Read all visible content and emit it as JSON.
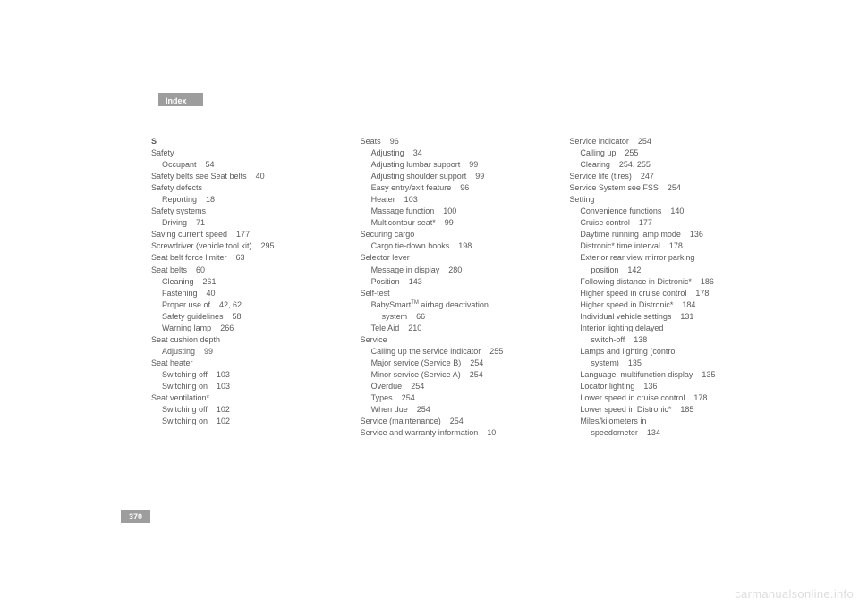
{
  "header": {
    "tab_label": "Index"
  },
  "page_number": "370",
  "watermark": "carmanualsonline.info",
  "columns": [
    [
      {
        "lvl": 0,
        "text": "S",
        "letter": true
      },
      {
        "lvl": 0,
        "text": "Safety"
      },
      {
        "lvl": 1,
        "text": "Occupant    54"
      },
      {
        "lvl": 0,
        "text": "Safety belts see Seat belts    40"
      },
      {
        "lvl": 0,
        "text": "Safety defects"
      },
      {
        "lvl": 1,
        "text": "Reporting    18"
      },
      {
        "lvl": 0,
        "text": "Safety systems"
      },
      {
        "lvl": 1,
        "text": "Driving    71"
      },
      {
        "lvl": 0,
        "text": "Saving current speed    177"
      },
      {
        "lvl": 0,
        "text": "Screwdriver (vehicle tool kit)    295"
      },
      {
        "lvl": 0,
        "text": "Seat belt force limiter    63"
      },
      {
        "lvl": 0,
        "text": "Seat belts    60"
      },
      {
        "lvl": 1,
        "text": "Cleaning    261"
      },
      {
        "lvl": 1,
        "text": "Fastening    40"
      },
      {
        "lvl": 1,
        "text": "Proper use of    42, 62"
      },
      {
        "lvl": 1,
        "text": "Safety guidelines    58"
      },
      {
        "lvl": 1,
        "text": "Warning lamp    266"
      },
      {
        "lvl": 0,
        "text": "Seat cushion depth"
      },
      {
        "lvl": 1,
        "text": "Adjusting    99"
      },
      {
        "lvl": 0,
        "text": "Seat heater"
      },
      {
        "lvl": 1,
        "text": "Switching off    103"
      },
      {
        "lvl": 1,
        "text": "Switching on    103"
      },
      {
        "lvl": 0,
        "text": "Seat ventilation*"
      },
      {
        "lvl": 1,
        "text": "Switching off    102"
      },
      {
        "lvl": 1,
        "text": "Switching on    102"
      }
    ],
    [
      {
        "lvl": 0,
        "text": "Seats    96"
      },
      {
        "lvl": 1,
        "text": "Adjusting    34"
      },
      {
        "lvl": 1,
        "text": "Adjusting lumbar support    99"
      },
      {
        "lvl": 1,
        "text": "Adjusting shoulder support    99"
      },
      {
        "lvl": 1,
        "text": "Easy entry/exit feature    96"
      },
      {
        "lvl": 1,
        "text": "Heater    103"
      },
      {
        "lvl": 1,
        "text": "Massage function    100"
      },
      {
        "lvl": 1,
        "text": "Multicontour seat*    99"
      },
      {
        "lvl": 0,
        "text": "Securing cargo"
      },
      {
        "lvl": 1,
        "text": "Cargo tie-down hooks    198"
      },
      {
        "lvl": 0,
        "text": "Selector lever"
      },
      {
        "lvl": 1,
        "text": "Message in display    280"
      },
      {
        "lvl": 1,
        "text": "Position    143"
      },
      {
        "lvl": 0,
        "text": "Self-test"
      },
      {
        "lvl": 1,
        "html": "BabySmart<sup>TM</sup> airbag deactivation"
      },
      {
        "lvl": 2,
        "text": "system    66"
      },
      {
        "lvl": 1,
        "text": "Tele Aid    210"
      },
      {
        "lvl": 0,
        "text": "Service"
      },
      {
        "lvl": 1,
        "text": "Calling up the service indicator    255"
      },
      {
        "lvl": 1,
        "text": "Major service (Service B)    254"
      },
      {
        "lvl": 1,
        "text": "Minor service (Service A)    254"
      },
      {
        "lvl": 1,
        "text": "Overdue    254"
      },
      {
        "lvl": 1,
        "text": "Types    254"
      },
      {
        "lvl": 1,
        "text": "When due    254"
      },
      {
        "lvl": 0,
        "text": "Service (maintenance)    254"
      },
      {
        "lvl": 0,
        "text": "Service and warranty information    10"
      }
    ],
    [
      {
        "lvl": 0,
        "text": "Service indicator    254"
      },
      {
        "lvl": 1,
        "text": "Calling up    255"
      },
      {
        "lvl": 1,
        "text": "Clearing    254, 255"
      },
      {
        "lvl": 0,
        "text": "Service life (tires)    247"
      },
      {
        "lvl": 0,
        "text": "Service System see FSS    254"
      },
      {
        "lvl": 0,
        "text": "Setting"
      },
      {
        "lvl": 1,
        "text": "Convenience functions    140"
      },
      {
        "lvl": 1,
        "text": "Cruise control    177"
      },
      {
        "lvl": 1,
        "text": "Daytime running lamp mode    136"
      },
      {
        "lvl": 1,
        "text": "Distronic* time interval    178"
      },
      {
        "lvl": 1,
        "text": "Exterior rear view mirror parking "
      },
      {
        "lvl": 2,
        "text": "position    142"
      },
      {
        "lvl": 1,
        "text": "Following distance in Distronic*    186"
      },
      {
        "lvl": 1,
        "text": "Higher speed in cruise control    178"
      },
      {
        "lvl": 1,
        "text": "Higher speed in Distronic*    184"
      },
      {
        "lvl": 1,
        "text": "Individual vehicle settings    131"
      },
      {
        "lvl": 1,
        "text": "Interior lighting delayed "
      },
      {
        "lvl": 2,
        "text": "switch-off    138"
      },
      {
        "lvl": 1,
        "text": "Lamps and lighting (control "
      },
      {
        "lvl": 2,
        "text": "system)    135"
      },
      {
        "lvl": 1,
        "text": "Language, multifunction display    135"
      },
      {
        "lvl": 1,
        "text": "Locator lighting    136"
      },
      {
        "lvl": 1,
        "text": "Lower speed in cruise control    178"
      },
      {
        "lvl": 1,
        "text": "Lower speed in Distronic*    185"
      },
      {
        "lvl": 1,
        "text": "Miles/kilometers in "
      },
      {
        "lvl": 2,
        "text": "speedometer    134"
      }
    ]
  ]
}
